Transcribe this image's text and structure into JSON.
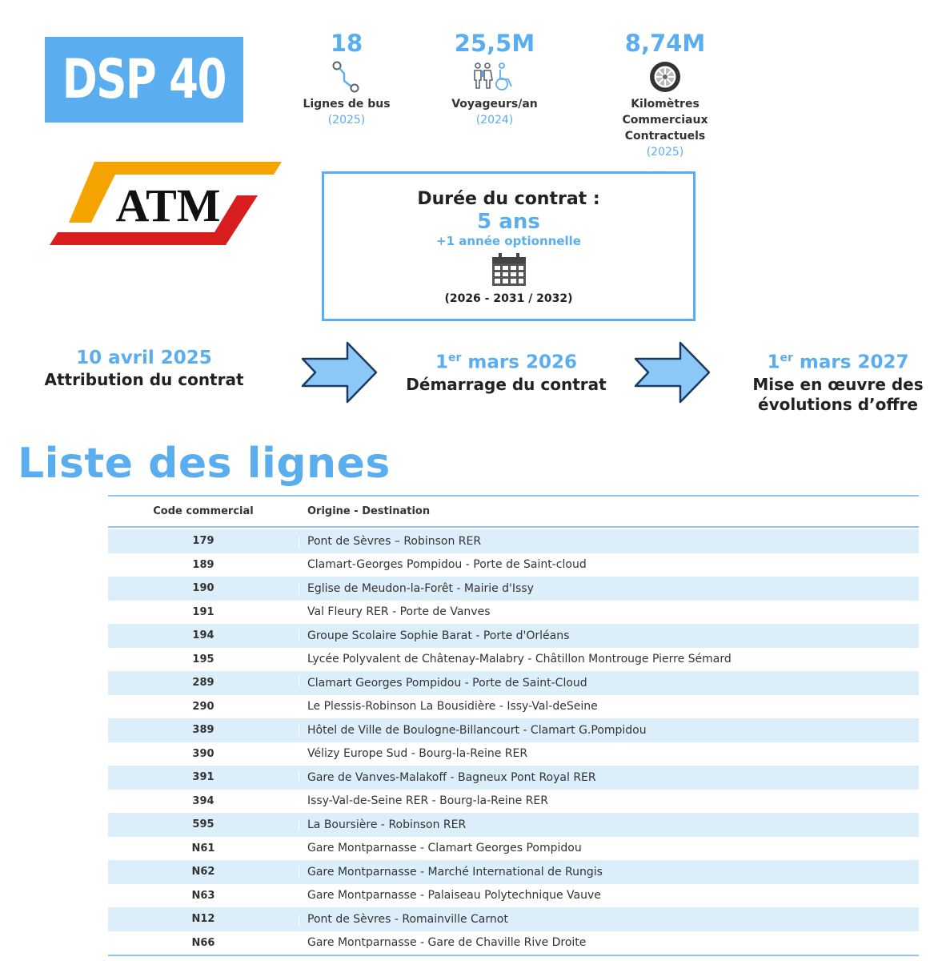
{
  "badge": {
    "text": "DSP 40"
  },
  "stats": [
    {
      "value": "18",
      "icon": "route-icon",
      "label_lines": [
        "Lignes de bus"
      ],
      "year": "(2025)"
    },
    {
      "value": "25,5M",
      "icon": "passengers-icon",
      "label_lines": [
        "Voyageurs/an"
      ],
      "year": "(2024)"
    },
    {
      "value": "8,74M",
      "icon": "wheel-icon",
      "label_lines": [
        "Kilomètres Commerciaux",
        "Contractuels"
      ],
      "year": "(2025)"
    }
  ],
  "logo": {
    "text": "ATM",
    "colors": {
      "orange": "#f5a300",
      "red": "#d81e1e"
    }
  },
  "contract": {
    "title": "Durée du contrat :",
    "duration": "5 ans",
    "option": "+1 année optionnelle",
    "years": "(2026 - 2031 / 2032)"
  },
  "timeline": [
    {
      "date_prefix": "10 avril 2025",
      "date_sup": "",
      "date_suffix": "",
      "label_lines": [
        "Attribution du contrat"
      ]
    },
    {
      "date_prefix": "1",
      "date_sup": "er",
      "date_suffix": " mars 2026",
      "label_lines": [
        "Démarrage du contrat"
      ]
    },
    {
      "date_prefix": "1",
      "date_sup": "er",
      "date_suffix": " mars 2027",
      "label_lines": [
        "Mise en œuvre des",
        "évolutions d’offre"
      ]
    }
  ],
  "list": {
    "title": "Liste des lignes",
    "headers": {
      "code": "Code commercial",
      "dest": "Origine - Destination"
    },
    "rows": [
      {
        "code": "179",
        "dest": "Pont de Sèvres – Robinson RER"
      },
      {
        "code": "189",
        "dest": "Clamart-Georges Pompidou - Porte de Saint-cloud"
      },
      {
        "code": "190",
        "dest": "Eglise de Meudon-la-Forêt - Mairie d'Issy"
      },
      {
        "code": "191",
        "dest": "Val Fleury RER - Porte de Vanves"
      },
      {
        "code": "194",
        "dest": "Groupe Scolaire Sophie Barat - Porte d'Orléans"
      },
      {
        "code": "195",
        "dest": "Lycée Polyvalent de Châtenay-Malabry - Châtillon Montrouge Pierre Sémard"
      },
      {
        "code": "289",
        "dest": "Clamart Georges Pompidou - Porte de Saint-Cloud"
      },
      {
        "code": "290",
        "dest": "Le Plessis-Robinson La Bousidière - Issy-Val-deSeine"
      },
      {
        "code": "389",
        "dest": "Hôtel de Ville de Boulogne-Billancourt - Clamart G.Pompidou"
      },
      {
        "code": "390",
        "dest": "Vélizy Europe Sud - Bourg-la-Reine RER"
      },
      {
        "code": "391",
        "dest": "Gare de Vanves-Malakoff - Bagneux Pont Royal RER"
      },
      {
        "code": "394",
        "dest": "Issy-Val-de-Seine RER - Bourg-la-Reine RER"
      },
      {
        "code": "595",
        "dest": "La Boursière - Robinson RER"
      },
      {
        "code": "N61",
        "dest": "Gare Montparnasse - Clamart Georges Pompidou"
      },
      {
        "code": "N62",
        "dest": "Gare Montparnasse - Marché International de Rungis"
      },
      {
        "code": "N63",
        "dest": "Gare Montparnasse - Palaiseau Polytechnique Vauve"
      },
      {
        "code": "N12",
        "dest": "Pont de Sèvres - Romainville Carnot"
      },
      {
        "code": "N66",
        "dest": "Gare Montparnasse - Gare de Chaville Rive Droite"
      }
    ]
  },
  "colors": {
    "accent": "#5aaef0",
    "row_band": "#ddeefb",
    "arrow_fill": "#8cc8f5",
    "arrow_stroke": "#1a3a66"
  }
}
